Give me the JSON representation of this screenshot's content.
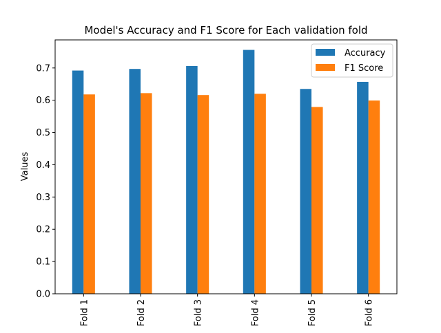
{
  "chart_data": {
    "type": "bar",
    "title": "Model's Accuracy and F1 Score for Each validation fold",
    "xlabel": "",
    "ylabel": "Values",
    "categories": [
      "Fold 1",
      "Fold 2",
      "Fold 3",
      "Fold 4",
      "Fold 5",
      "Fold 6"
    ],
    "series": [
      {
        "name": "Accuracy",
        "color": "#1f77b4",
        "values": [
          0.692,
          0.697,
          0.706,
          0.756,
          0.635,
          0.657
        ]
      },
      {
        "name": "F1 Score",
        "color": "#ff7f0e",
        "values": [
          0.618,
          0.622,
          0.616,
          0.62,
          0.579,
          0.599
        ]
      }
    ],
    "ylim": [
      0,
      0.787
    ],
    "yticks": [
      "0.0",
      "0.1",
      "0.2",
      "0.3",
      "0.4",
      "0.5",
      "0.6",
      "0.7"
    ],
    "grid": false,
    "legend_position": "top-right",
    "x_tick_rotation": "vertical"
  }
}
